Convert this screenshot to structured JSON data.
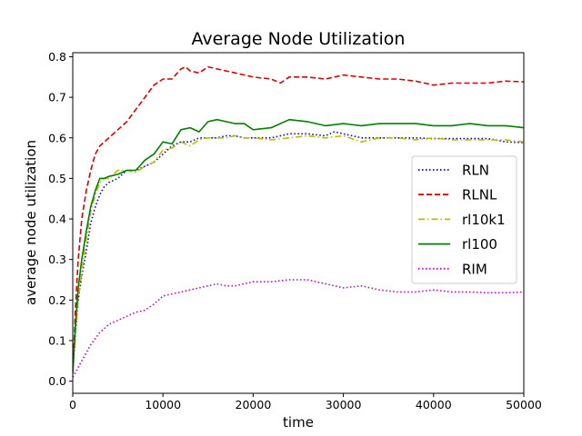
{
  "chart_data": {
    "type": "line",
    "title": "Average Node Utilization",
    "xlabel": "time",
    "ylabel": "average node utilization",
    "xlim": [
      0,
      50000
    ],
    "ylim": [
      -0.03,
      0.81
    ],
    "xticks": [
      0,
      10000,
      20000,
      30000,
      40000,
      50000
    ],
    "xtick_labels": [
      "0",
      "10000",
      "20000",
      "30000",
      "40000",
      "50000"
    ],
    "yticks": [
      0.0,
      0.1,
      0.2,
      0.3,
      0.4,
      0.5,
      0.6,
      0.7,
      0.8
    ],
    "ytick_labels": [
      "0.0",
      "0.1",
      "0.2",
      "0.3",
      "0.4",
      "0.5",
      "0.6",
      "0.7",
      "0.8"
    ],
    "grid": false,
    "legend_position": "center-right",
    "series": [
      {
        "name": "RLN",
        "color": "#0000cc",
        "style": "dotted",
        "x": [
          0,
          300,
          600,
          1000,
          1500,
          2000,
          2500,
          3000,
          3500,
          4000,
          5000,
          6000,
          7000,
          8000,
          9000,
          10000,
          11000,
          12000,
          13000,
          14000,
          15000,
          16000,
          17000,
          18000,
          19000,
          20000,
          22000,
          24000,
          26000,
          28000,
          29000,
          30000,
          32000,
          34000,
          36000,
          38000,
          40000,
          42000,
          44000,
          46000,
          48000,
          50000
        ],
        "y": [
          0.02,
          0.12,
          0.2,
          0.26,
          0.32,
          0.39,
          0.43,
          0.46,
          0.48,
          0.49,
          0.5,
          0.52,
          0.52,
          0.53,
          0.54,
          0.56,
          0.58,
          0.59,
          0.59,
          0.6,
          0.6,
          0.6,
          0.605,
          0.605,
          0.6,
          0.6,
          0.6,
          0.61,
          0.61,
          0.605,
          0.615,
          0.61,
          0.6,
          0.6,
          0.6,
          0.6,
          0.598,
          0.598,
          0.598,
          0.598,
          0.59,
          0.588
        ]
      },
      {
        "name": "RLNL",
        "color": "#dd0000",
        "style": "dashed",
        "x": [
          0,
          300,
          600,
          1000,
          1500,
          2000,
          2500,
          3000,
          3500,
          4000,
          5000,
          6000,
          7000,
          8000,
          9000,
          10000,
          11000,
          12000,
          12500,
          13000,
          14000,
          15000,
          16000,
          17000,
          18000,
          20000,
          22000,
          23000,
          24000,
          26000,
          28000,
          30000,
          32000,
          34000,
          36000,
          38000,
          40000,
          42000,
          44000,
          46000,
          48000,
          50000
        ],
        "y": [
          0.02,
          0.18,
          0.3,
          0.4,
          0.47,
          0.52,
          0.56,
          0.58,
          0.59,
          0.6,
          0.62,
          0.64,
          0.67,
          0.7,
          0.73,
          0.745,
          0.745,
          0.77,
          0.775,
          0.765,
          0.76,
          0.775,
          0.77,
          0.765,
          0.76,
          0.75,
          0.745,
          0.735,
          0.75,
          0.75,
          0.745,
          0.755,
          0.75,
          0.745,
          0.745,
          0.74,
          0.73,
          0.735,
          0.735,
          0.735,
          0.74,
          0.738
        ]
      },
      {
        "name": "rl10k1",
        "color": "#bbbb00",
        "style": "dashdot",
        "x": [
          0,
          300,
          600,
          1000,
          1500,
          2000,
          2500,
          3000,
          3500,
          4000,
          5000,
          6000,
          7000,
          8000,
          9000,
          10000,
          11000,
          12000,
          13000,
          14000,
          15000,
          16000,
          17000,
          18000,
          19000,
          20000,
          22000,
          24000,
          26000,
          28000,
          30000,
          32000,
          34000,
          36000,
          38000,
          40000,
          42000,
          44000,
          46000,
          48000,
          50000
        ],
        "y": [
          0.02,
          0.12,
          0.2,
          0.27,
          0.35,
          0.42,
          0.46,
          0.49,
          0.5,
          0.5,
          0.52,
          0.52,
          0.515,
          0.53,
          0.54,
          0.57,
          0.575,
          0.59,
          0.58,
          0.595,
          0.6,
          0.6,
          0.6,
          0.605,
          0.6,
          0.6,
          0.595,
          0.6,
          0.605,
          0.6,
          0.605,
          0.59,
          0.6,
          0.6,
          0.595,
          0.6,
          0.595,
          0.595,
          0.595,
          0.595,
          0.59
        ]
      },
      {
        "name": "rl100",
        "color": "#008000",
        "style": "solid",
        "x": [
          0,
          300,
          600,
          1000,
          1500,
          2000,
          2500,
          3000,
          3500,
          4000,
          5000,
          6000,
          7000,
          8000,
          9000,
          10000,
          11000,
          12000,
          13000,
          14000,
          15000,
          16000,
          17000,
          18000,
          19000,
          20000,
          22000,
          24000,
          26000,
          28000,
          30000,
          32000,
          34000,
          36000,
          38000,
          40000,
          42000,
          44000,
          46000,
          48000,
          50000
        ],
        "y": [
          0.02,
          0.14,
          0.23,
          0.3,
          0.37,
          0.43,
          0.47,
          0.5,
          0.5,
          0.505,
          0.51,
          0.52,
          0.52,
          0.545,
          0.56,
          0.59,
          0.585,
          0.62,
          0.625,
          0.615,
          0.64,
          0.645,
          0.64,
          0.635,
          0.635,
          0.62,
          0.625,
          0.645,
          0.64,
          0.63,
          0.635,
          0.63,
          0.635,
          0.635,
          0.635,
          0.63,
          0.63,
          0.635,
          0.63,
          0.63,
          0.625
        ]
      },
      {
        "name": "RIM",
        "color": "#cc00cc",
        "style": "dotted",
        "x": [
          0,
          500,
          1000,
          2000,
          3000,
          4000,
          5000,
          6000,
          7000,
          8000,
          9000,
          10000,
          11000,
          12000,
          13000,
          14000,
          15000,
          16000,
          17000,
          18000,
          19000,
          20000,
          22000,
          24000,
          26000,
          28000,
          29000,
          30000,
          32000,
          34000,
          36000,
          38000,
          40000,
          42000,
          44000,
          46000,
          48000,
          50000
        ],
        "y": [
          0.01,
          0.03,
          0.05,
          0.09,
          0.12,
          0.14,
          0.15,
          0.16,
          0.17,
          0.175,
          0.19,
          0.21,
          0.215,
          0.22,
          0.225,
          0.23,
          0.235,
          0.24,
          0.235,
          0.235,
          0.24,
          0.245,
          0.245,
          0.25,
          0.25,
          0.24,
          0.235,
          0.23,
          0.235,
          0.225,
          0.22,
          0.22,
          0.225,
          0.22,
          0.22,
          0.218,
          0.218,
          0.22
        ]
      }
    ]
  }
}
